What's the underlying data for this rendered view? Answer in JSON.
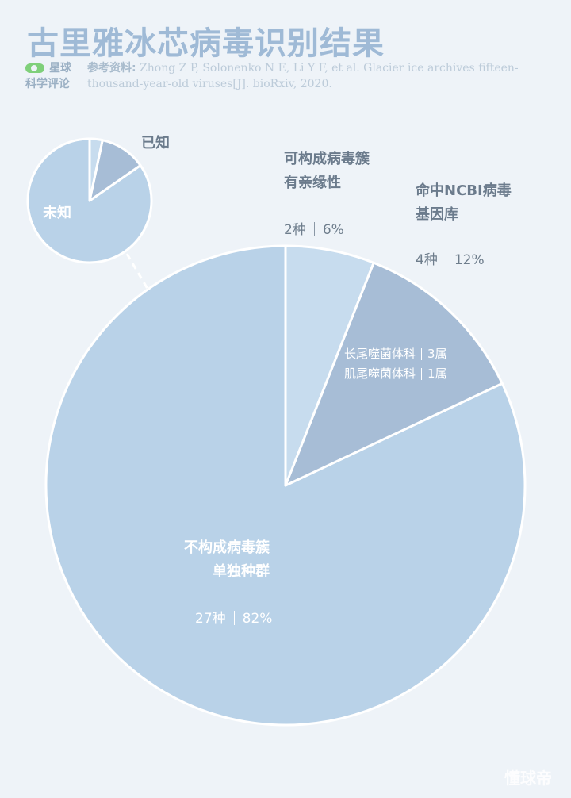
{
  "title": "古里雅冰芯病毒识别结果",
  "brand": {
    "line1": "星球",
    "line2": "科学评论"
  },
  "reference": {
    "label": "参考资料:",
    "text": " Zhong Z P, Solonenko N E, Li Y F, et al. Glacier ice archives fifteen-thousand-year-old viruses[J]. bioRxiv, 2020."
  },
  "colors": {
    "background": "#eef3f8",
    "main_slice": "#b9d2e8",
    "cluster_slice": "#c7dcee",
    "ncbi_slice": "#a7bdd6",
    "inset_unknown": "#b9d2e8",
    "inset_known": "#a7bdd6",
    "stroke": "#ffffff"
  },
  "chart_data": [
    {
      "type": "pie",
      "title": "古里雅冰芯病毒识别结果",
      "slices": [
        {
          "name": "可构成病毒簇有亲缘性",
          "value": 2,
          "percent": 6,
          "unit": "种"
        },
        {
          "name": "命中NCBI病毒基因库",
          "value": 4,
          "percent": 12,
          "unit": "种",
          "breakdown": [
            {
              "family": "长尾噬菌体科",
              "genera": 3
            },
            {
              "family": "肌尾噬菌体科",
              "genera": 1
            }
          ]
        },
        {
          "name": "不构成病毒簇单独种群",
          "value": 27,
          "percent": 82,
          "unit": "种"
        }
      ]
    },
    {
      "type": "pie",
      "slices": [
        {
          "name": "已知",
          "percent": 12
        },
        {
          "name": "未知",
          "percent": 88
        }
      ]
    }
  ],
  "labels": {
    "cluster": {
      "line1": "可构成病毒簇",
      "line2": "有亲缘性",
      "count": "2种",
      "pct": "6%"
    },
    "ncbi": {
      "line1": "命中NCBI病毒",
      "line2": "基因库",
      "count": "4种",
      "pct": "12%"
    },
    "ncbi_detail": [
      {
        "family": "长尾噬菌体科",
        "genera": "3属"
      },
      {
        "family": "肌尾噬菌体科",
        "genera": "1属"
      }
    ],
    "unique": {
      "line1": "不构成病毒簇",
      "line2": "单独种群",
      "count": "27种",
      "pct": "82%"
    },
    "inset_known": "已知",
    "inset_unknown": "未知"
  },
  "watermark": "懂球帝"
}
